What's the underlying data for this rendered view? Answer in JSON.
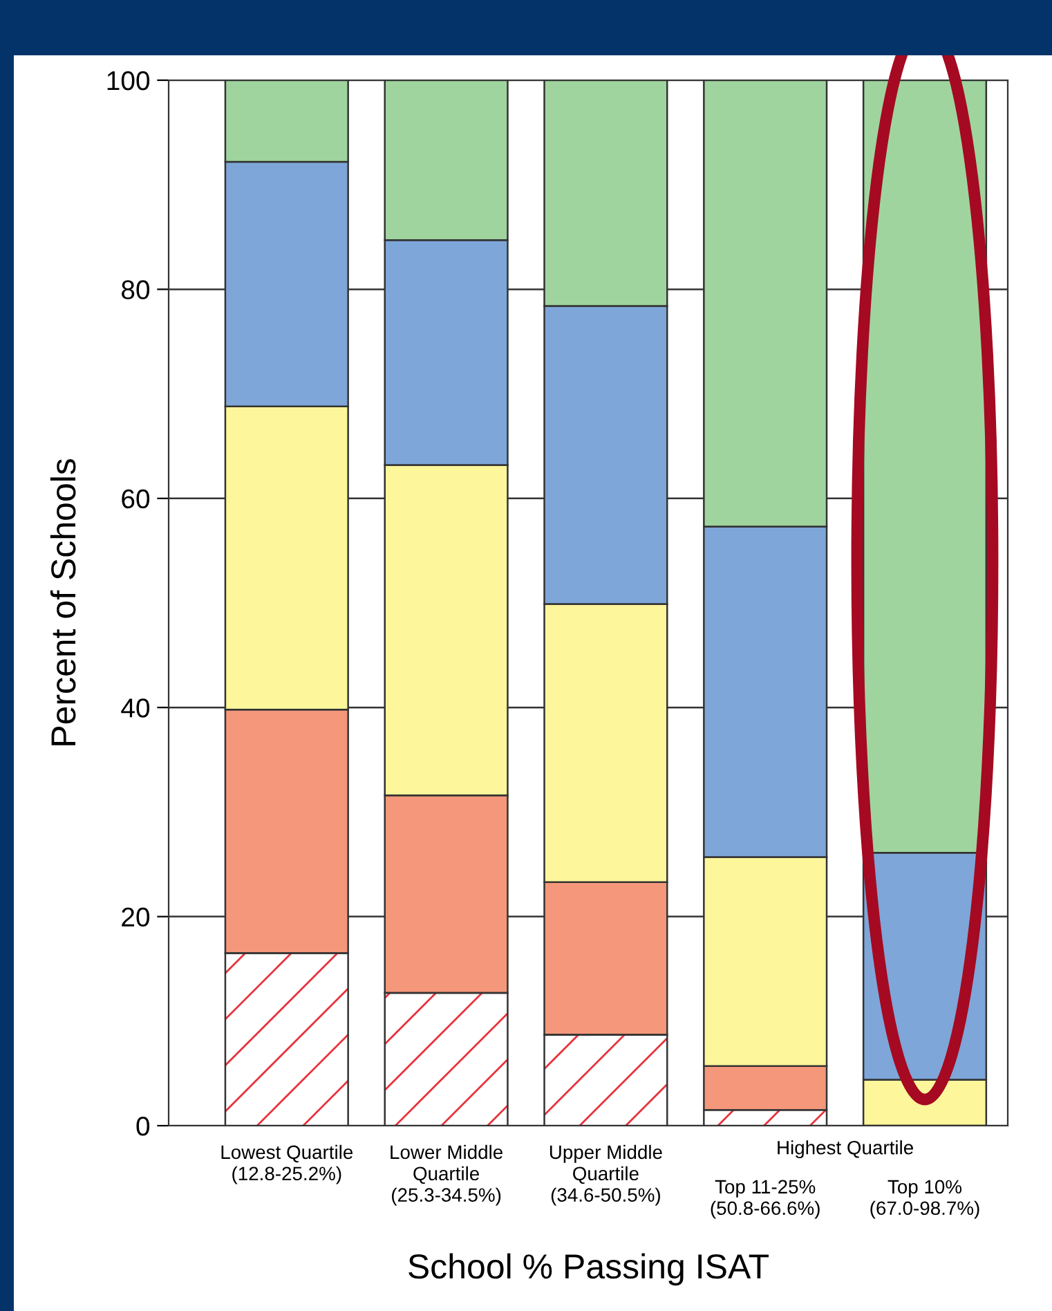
{
  "chart_data": {
    "type": "bar",
    "stacked": true,
    "xlabel": "School % Passing ISAT",
    "ylabel": "Percent of Schools",
    "categories": [
      "Lowest Quartile\n(12.8-25.2%)",
      "Lower Middle\nQuartile\n(25.3-34.5%)",
      "Upper Middle\nQuartile\n(34.6-50.5%)",
      "Top 11-25%\n(50.8-66.6%)",
      "Top 10%\n(67.0-98.7%)"
    ],
    "annotations": [
      "Highest Quartile"
    ],
    "series": [
      {
        "color": "#e8323c",
        "values": [
          16.5,
          12.7,
          8.7,
          1.5,
          0
        ]
      },
      {
        "color": "#f4977a",
        "values": [
          23.3,
          18.9,
          14.6,
          4.2,
          0
        ]
      },
      {
        "color": "#fdf69a",
        "values": [
          29.0,
          31.6,
          26.6,
          20.0,
          4.4
        ]
      },
      {
        "color": "#7ea6d8",
        "values": [
          23.4,
          21.5,
          28.5,
          31.6,
          21.7
        ]
      },
      {
        "color": "#9fd49e",
        "values": [
          7.8,
          15.3,
          21.6,
          42.7,
          73.9
        ]
      }
    ],
    "ylim": [
      0,
      100
    ],
    "yticks": [
      0,
      20,
      40,
      60,
      80,
      100
    ],
    "grid": "y"
  }
}
